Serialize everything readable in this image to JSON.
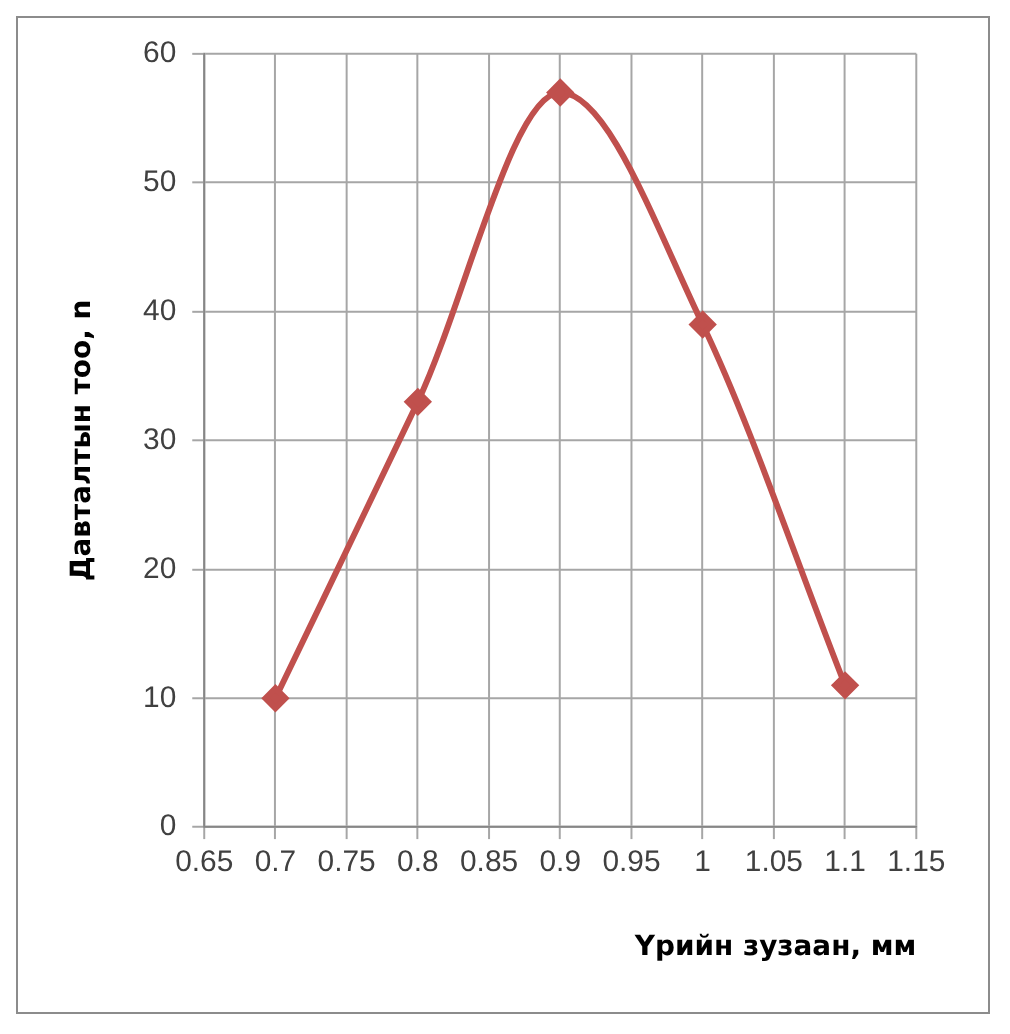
{
  "chart_data": {
    "type": "line",
    "xlabel": "Үрийн зузаан, мм",
    "ylabel": "Давталтын тоо, n",
    "x": [
      0.7,
      0.8,
      0.9,
      1,
      1.1
    ],
    "series": [
      {
        "color": "#c0504d",
        "values": [
          10,
          33,
          57,
          39,
          11
        ]
      }
    ],
    "xlim": [
      0.65,
      1.15
    ],
    "xticks": [
      0.65,
      0.7,
      0.75,
      0.8,
      0.85,
      0.9,
      0.95,
      1,
      1.05,
      1.1,
      1.15
    ],
    "ylim": [
      0,
      60
    ],
    "yticks": [
      0,
      10,
      20,
      30,
      40,
      50,
      60
    ],
    "grid": true,
    "legend": false,
    "marker": "diamond",
    "line_style": "solid"
  }
}
